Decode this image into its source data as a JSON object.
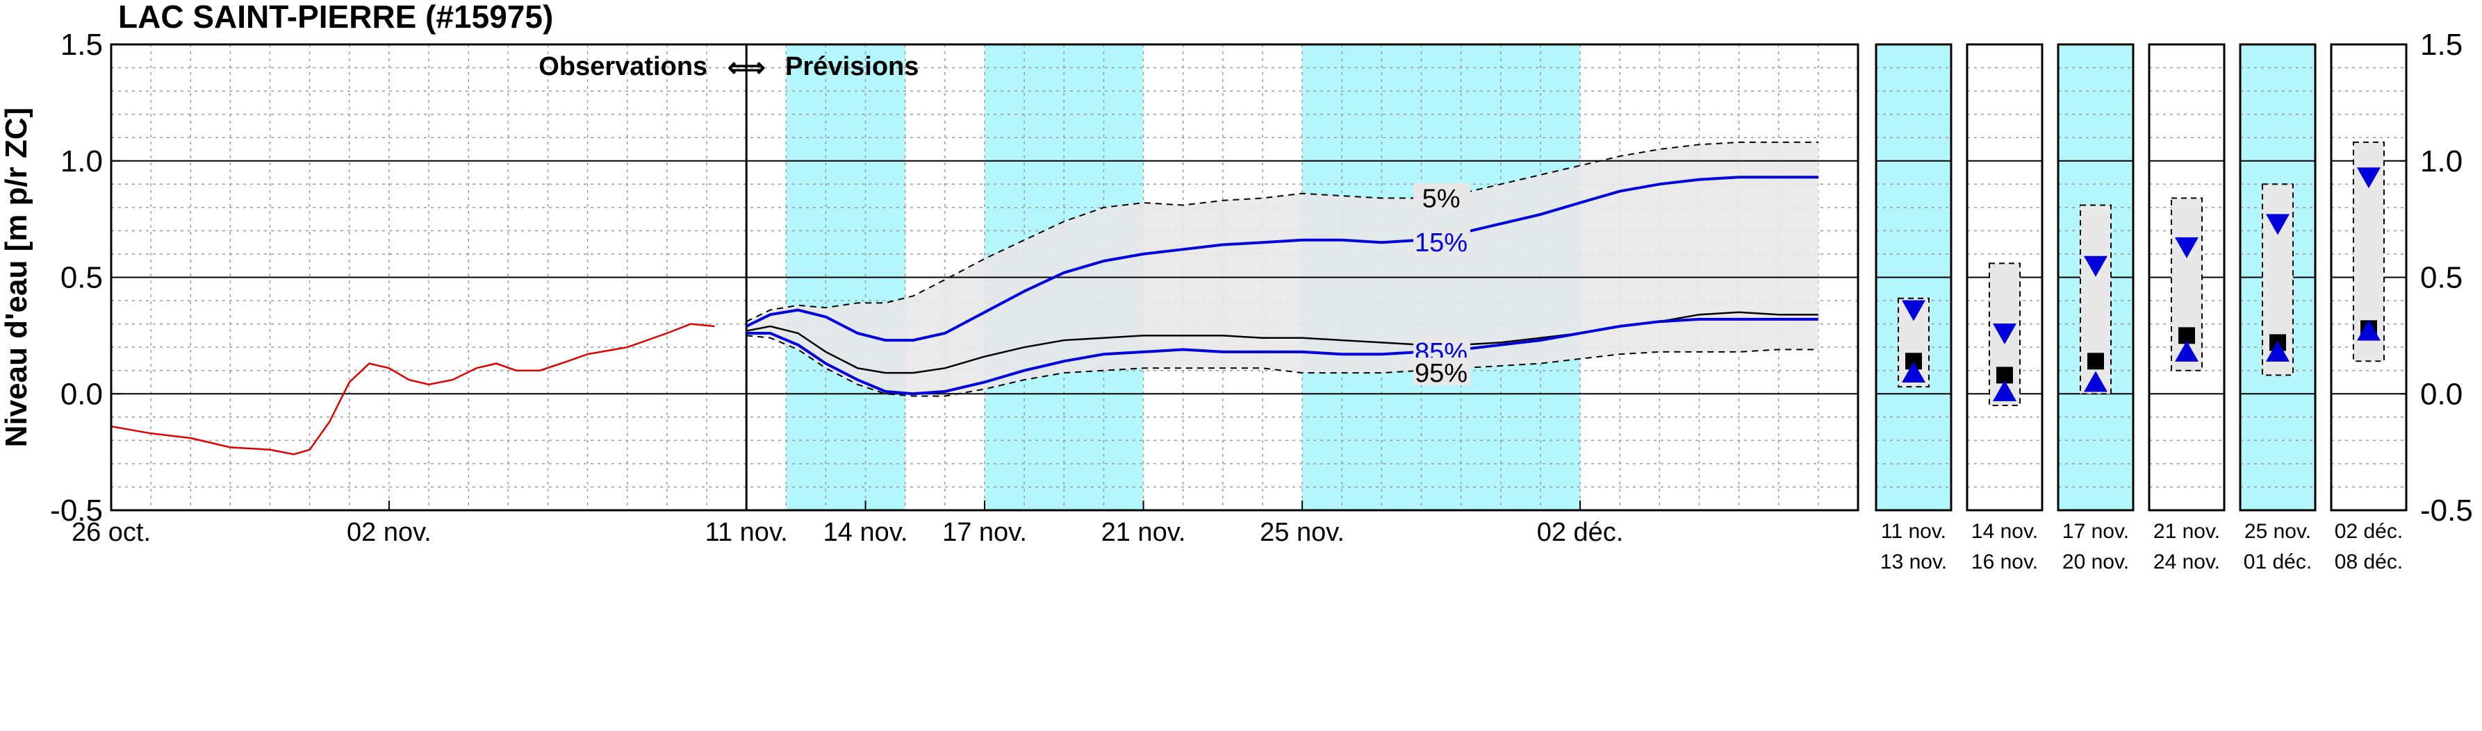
{
  "chart_data": {
    "type": "line",
    "title": "LAC SAINT-PIERRE (#15975)",
    "ylabel": "Niveau d'eau [m p/r ZC]",
    "ylim": [
      -0.5,
      1.5
    ],
    "yticks": [
      "-0.5",
      "0.0",
      "0.5",
      "1.0",
      "1.5"
    ],
    "xlim": [
      0,
      44
    ],
    "x_tick_labels": [
      {
        "x": 0,
        "label": "26 oct."
      },
      {
        "x": 7,
        "label": "02 nov."
      },
      {
        "x": 16,
        "label": "11 nov."
      },
      {
        "x": 19,
        "label": "14 nov."
      },
      {
        "x": 22,
        "label": "17 nov."
      },
      {
        "x": 26,
        "label": "21 nov."
      },
      {
        "x": 30,
        "label": "25 nov."
      },
      {
        "x": 37,
        "label": "02 déc."
      }
    ],
    "grid": true,
    "observations_label": "Observations",
    "arrow_glyph": "⟺",
    "forecast_label": "Prévisions",
    "forecast_start_x": 16,
    "shaded_periods": [
      [
        17,
        20
      ],
      [
        22,
        26
      ],
      [
        30,
        37
      ]
    ],
    "observed": {
      "color": "#e00000",
      "points": [
        [
          0,
          -0.14
        ],
        [
          1,
          -0.17
        ],
        [
          2,
          -0.19
        ],
        [
          3,
          -0.23
        ],
        [
          4,
          -0.24
        ],
        [
          4.6,
          -0.26
        ],
        [
          5,
          -0.24
        ],
        [
          5.5,
          -0.12
        ],
        [
          6,
          0.05
        ],
        [
          6.5,
          0.13
        ],
        [
          7,
          0.11
        ],
        [
          7.5,
          0.06
        ],
        [
          8,
          0.04
        ],
        [
          8.6,
          0.06
        ],
        [
          9.2,
          0.11
        ],
        [
          9.7,
          0.13
        ],
        [
          10.2,
          0.1
        ],
        [
          10.8,
          0.1
        ],
        [
          11.5,
          0.14
        ],
        [
          12,
          0.17
        ],
        [
          13,
          0.2
        ],
        [
          14,
          0.26
        ],
        [
          14.6,
          0.3
        ],
        [
          15.2,
          0.29
        ]
      ]
    },
    "series": [
      {
        "name": "5%",
        "style": "dashed",
        "color": "#000000",
        "points": [
          [
            16,
            0.31
          ],
          [
            16.6,
            0.36
          ],
          [
            17.3,
            0.38
          ],
          [
            18,
            0.37
          ],
          [
            18.8,
            0.39
          ],
          [
            19.5,
            0.39
          ],
          [
            20.2,
            0.42
          ],
          [
            21,
            0.49
          ],
          [
            22,
            0.58
          ],
          [
            23,
            0.66
          ],
          [
            24,
            0.74
          ],
          [
            25,
            0.8
          ],
          [
            26,
            0.82
          ],
          [
            27,
            0.81
          ],
          [
            28,
            0.83
          ],
          [
            29,
            0.84
          ],
          [
            30,
            0.86
          ],
          [
            31,
            0.85
          ],
          [
            32,
            0.84
          ],
          [
            33,
            0.84
          ],
          [
            34,
            0.86
          ],
          [
            35,
            0.9
          ],
          [
            36,
            0.94
          ],
          [
            37,
            0.98
          ],
          [
            38,
            1.02
          ],
          [
            39,
            1.05
          ],
          [
            40,
            1.07
          ],
          [
            41,
            1.08
          ],
          [
            42,
            1.08
          ],
          [
            43,
            1.08
          ]
        ]
      },
      {
        "name": "15%",
        "style": "solid",
        "color": "#0000dd",
        "points": [
          [
            16,
            0.29
          ],
          [
            16.6,
            0.34
          ],
          [
            17.3,
            0.36
          ],
          [
            18,
            0.33
          ],
          [
            18.8,
            0.26
          ],
          [
            19.5,
            0.23
          ],
          [
            20.2,
            0.23
          ],
          [
            21,
            0.26
          ],
          [
            22,
            0.35
          ],
          [
            23,
            0.44
          ],
          [
            24,
            0.52
          ],
          [
            25,
            0.57
          ],
          [
            26,
            0.6
          ],
          [
            27,
            0.62
          ],
          [
            28,
            0.64
          ],
          [
            29,
            0.65
          ],
          [
            30,
            0.66
          ],
          [
            31,
            0.66
          ],
          [
            32,
            0.65
          ],
          [
            33,
            0.66
          ],
          [
            34,
            0.69
          ],
          [
            35,
            0.73
          ],
          [
            36,
            0.77
          ],
          [
            37,
            0.82
          ],
          [
            38,
            0.87
          ],
          [
            39,
            0.9
          ],
          [
            40,
            0.92
          ],
          [
            41,
            0.93
          ],
          [
            42,
            0.93
          ],
          [
            43,
            0.93
          ]
        ]
      },
      {
        "name": "",
        "style": "solid",
        "color": "#000000",
        "points": [
          [
            16,
            0.27
          ],
          [
            16.6,
            0.29
          ],
          [
            17.3,
            0.26
          ],
          [
            18,
            0.18
          ],
          [
            18.8,
            0.11
          ],
          [
            19.5,
            0.09
          ],
          [
            20.2,
            0.09
          ],
          [
            21,
            0.11
          ],
          [
            22,
            0.16
          ],
          [
            23,
            0.2
          ],
          [
            24,
            0.23
          ],
          [
            25,
            0.24
          ],
          [
            26,
            0.25
          ],
          [
            27,
            0.25
          ],
          [
            28,
            0.25
          ],
          [
            29,
            0.24
          ],
          [
            30,
            0.24
          ],
          [
            31,
            0.23
          ],
          [
            32,
            0.22
          ],
          [
            33,
            0.21
          ],
          [
            34,
            0.21
          ],
          [
            35,
            0.22
          ],
          [
            36,
            0.24
          ],
          [
            37,
            0.26
          ],
          [
            38,
            0.29
          ],
          [
            39,
            0.31
          ],
          [
            40,
            0.34
          ],
          [
            41,
            0.35
          ],
          [
            42,
            0.34
          ],
          [
            43,
            0.34
          ]
        ]
      },
      {
        "name": "85%",
        "style": "solid",
        "color": "#0000dd",
        "points": [
          [
            16,
            0.26
          ],
          [
            16.6,
            0.26
          ],
          [
            17.3,
            0.21
          ],
          [
            18,
            0.13
          ],
          [
            18.8,
            0.06
          ],
          [
            19.5,
            0.01
          ],
          [
            20.2,
            0.0
          ],
          [
            21,
            0.01
          ],
          [
            22,
            0.05
          ],
          [
            23,
            0.1
          ],
          [
            24,
            0.14
          ],
          [
            25,
            0.17
          ],
          [
            26,
            0.18
          ],
          [
            27,
            0.19
          ],
          [
            28,
            0.18
          ],
          [
            29,
            0.18
          ],
          [
            30,
            0.18
          ],
          [
            31,
            0.17
          ],
          [
            32,
            0.17
          ],
          [
            33,
            0.18
          ],
          [
            34,
            0.19
          ],
          [
            35,
            0.21
          ],
          [
            36,
            0.23
          ],
          [
            37,
            0.26
          ],
          [
            38,
            0.29
          ],
          [
            39,
            0.31
          ],
          [
            40,
            0.32
          ],
          [
            41,
            0.32
          ],
          [
            42,
            0.32
          ],
          [
            43,
            0.32
          ]
        ]
      },
      {
        "name": "95%",
        "style": "dashed",
        "color": "#000000",
        "points": [
          [
            16,
            0.25
          ],
          [
            16.6,
            0.24
          ],
          [
            17.3,
            0.19
          ],
          [
            18,
            0.11
          ],
          [
            18.8,
            0.04
          ],
          [
            19.5,
            0.0
          ],
          [
            20.2,
            -0.01
          ],
          [
            21,
            -0.01
          ],
          [
            22,
            0.02
          ],
          [
            23,
            0.06
          ],
          [
            24,
            0.09
          ],
          [
            25,
            0.1
          ],
          [
            26,
            0.11
          ],
          [
            27,
            0.11
          ],
          [
            28,
            0.11
          ],
          [
            29,
            0.11
          ],
          [
            30,
            0.09
          ],
          [
            31,
            0.09
          ],
          [
            32,
            0.09
          ],
          [
            33,
            0.1
          ],
          [
            34,
            0.11
          ],
          [
            35,
            0.12
          ],
          [
            36,
            0.13
          ],
          [
            37,
            0.15
          ],
          [
            38,
            0.17
          ],
          [
            39,
            0.18
          ],
          [
            40,
            0.18
          ],
          [
            41,
            0.18
          ],
          [
            42,
            0.19
          ],
          [
            43,
            0.19
          ]
        ]
      }
    ],
    "periods": [
      {
        "start": "11 nov.",
        "end": "13 nov.",
        "shaded": true,
        "low": 0.03,
        "high": 0.41,
        "p85": 0.09,
        "median": 0.14,
        "p15": 0.36
      },
      {
        "start": "14 nov.",
        "end": "16 nov.",
        "shaded": false,
        "low": -0.05,
        "high": 0.56,
        "p85": 0.01,
        "median": 0.08,
        "p15": 0.26
      },
      {
        "start": "17 nov.",
        "end": "20 nov.",
        "shaded": true,
        "low": 0.0,
        "high": 0.81,
        "p85": 0.05,
        "median": 0.14,
        "p15": 0.55
      },
      {
        "start": "21 nov.",
        "end": "24 nov.",
        "shaded": false,
        "low": 0.1,
        "high": 0.84,
        "p85": 0.18,
        "median": 0.25,
        "p15": 0.63
      },
      {
        "start": "25 nov.",
        "end": "01 déc.",
        "shaded": true,
        "low": 0.08,
        "high": 0.9,
        "p85": 0.18,
        "median": 0.22,
        "p15": 0.73
      },
      {
        "start": "02 déc.",
        "end": "08 déc.",
        "shaded": false,
        "low": 0.14,
        "high": 1.08,
        "p85": 0.27,
        "median": 0.28,
        "p15": 0.93
      }
    ],
    "colors": {
      "shade": "#b3f6fb",
      "band": "#e8e8e8",
      "blue": "#0000dd",
      "red": "#e00000"
    }
  }
}
